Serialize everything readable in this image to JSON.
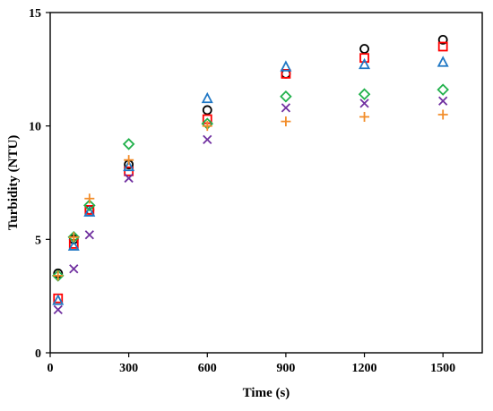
{
  "chart_data": {
    "type": "scatter",
    "xlabel": "Time (s)",
    "ylabel": "Turbidity (NTU)",
    "xlim": [
      0,
      1650
    ],
    "ylim": [
      0,
      15
    ],
    "xticks": [
      0,
      300,
      600,
      900,
      1200,
      1500
    ],
    "yticks": [
      0,
      5,
      10,
      15
    ],
    "xtick_labels": [
      "0",
      "300",
      "600",
      "900",
      "1200",
      "1500"
    ],
    "ytick_labels": [
      "0",
      "5",
      "10",
      "15"
    ],
    "grid": false,
    "legend": "none",
    "series": [
      {
        "marker": "circle",
        "color": "#000000",
        "x": [
          30,
          90,
          150,
          300,
          600,
          900,
          1200,
          1500
        ],
        "y": [
          3.5,
          5.0,
          6.3,
          8.3,
          10.7,
          12.3,
          13.4,
          13.8
        ]
      },
      {
        "marker": "square",
        "color": "#ff0000",
        "x": [
          30,
          90,
          150,
          300,
          600,
          900,
          1200,
          1500
        ],
        "y": [
          2.4,
          4.8,
          6.3,
          8.0,
          10.3,
          12.3,
          13.0,
          13.5
        ]
      },
      {
        "marker": "triangle",
        "color": "#1f77c4",
        "x": [
          30,
          90,
          150,
          300,
          600,
          900,
          1200,
          1500
        ],
        "y": [
          2.3,
          4.7,
          6.2,
          8.2,
          11.2,
          12.6,
          12.7,
          12.8
        ]
      },
      {
        "marker": "diamond",
        "color": "#22b14c",
        "x": [
          30,
          90,
          150,
          300,
          600,
          900,
          1200,
          1500
        ],
        "y": [
          3.4,
          5.1,
          6.5,
          9.2,
          10.1,
          11.3,
          11.4,
          11.6
        ]
      },
      {
        "marker": "cross",
        "color": "#7030a0",
        "x": [
          30,
          90,
          150,
          300,
          600,
          900,
          1200,
          1500
        ],
        "y": [
          1.9,
          3.7,
          5.2,
          7.7,
          9.4,
          10.8,
          11.0,
          11.1
        ]
      },
      {
        "marker": "plus",
        "color": "#f28c28",
        "x": [
          30,
          90,
          150,
          300,
          600,
          900,
          1200,
          1500
        ],
        "y": [
          3.4,
          5.1,
          6.8,
          8.5,
          10.0,
          10.2,
          10.4,
          10.5
        ]
      }
    ]
  }
}
